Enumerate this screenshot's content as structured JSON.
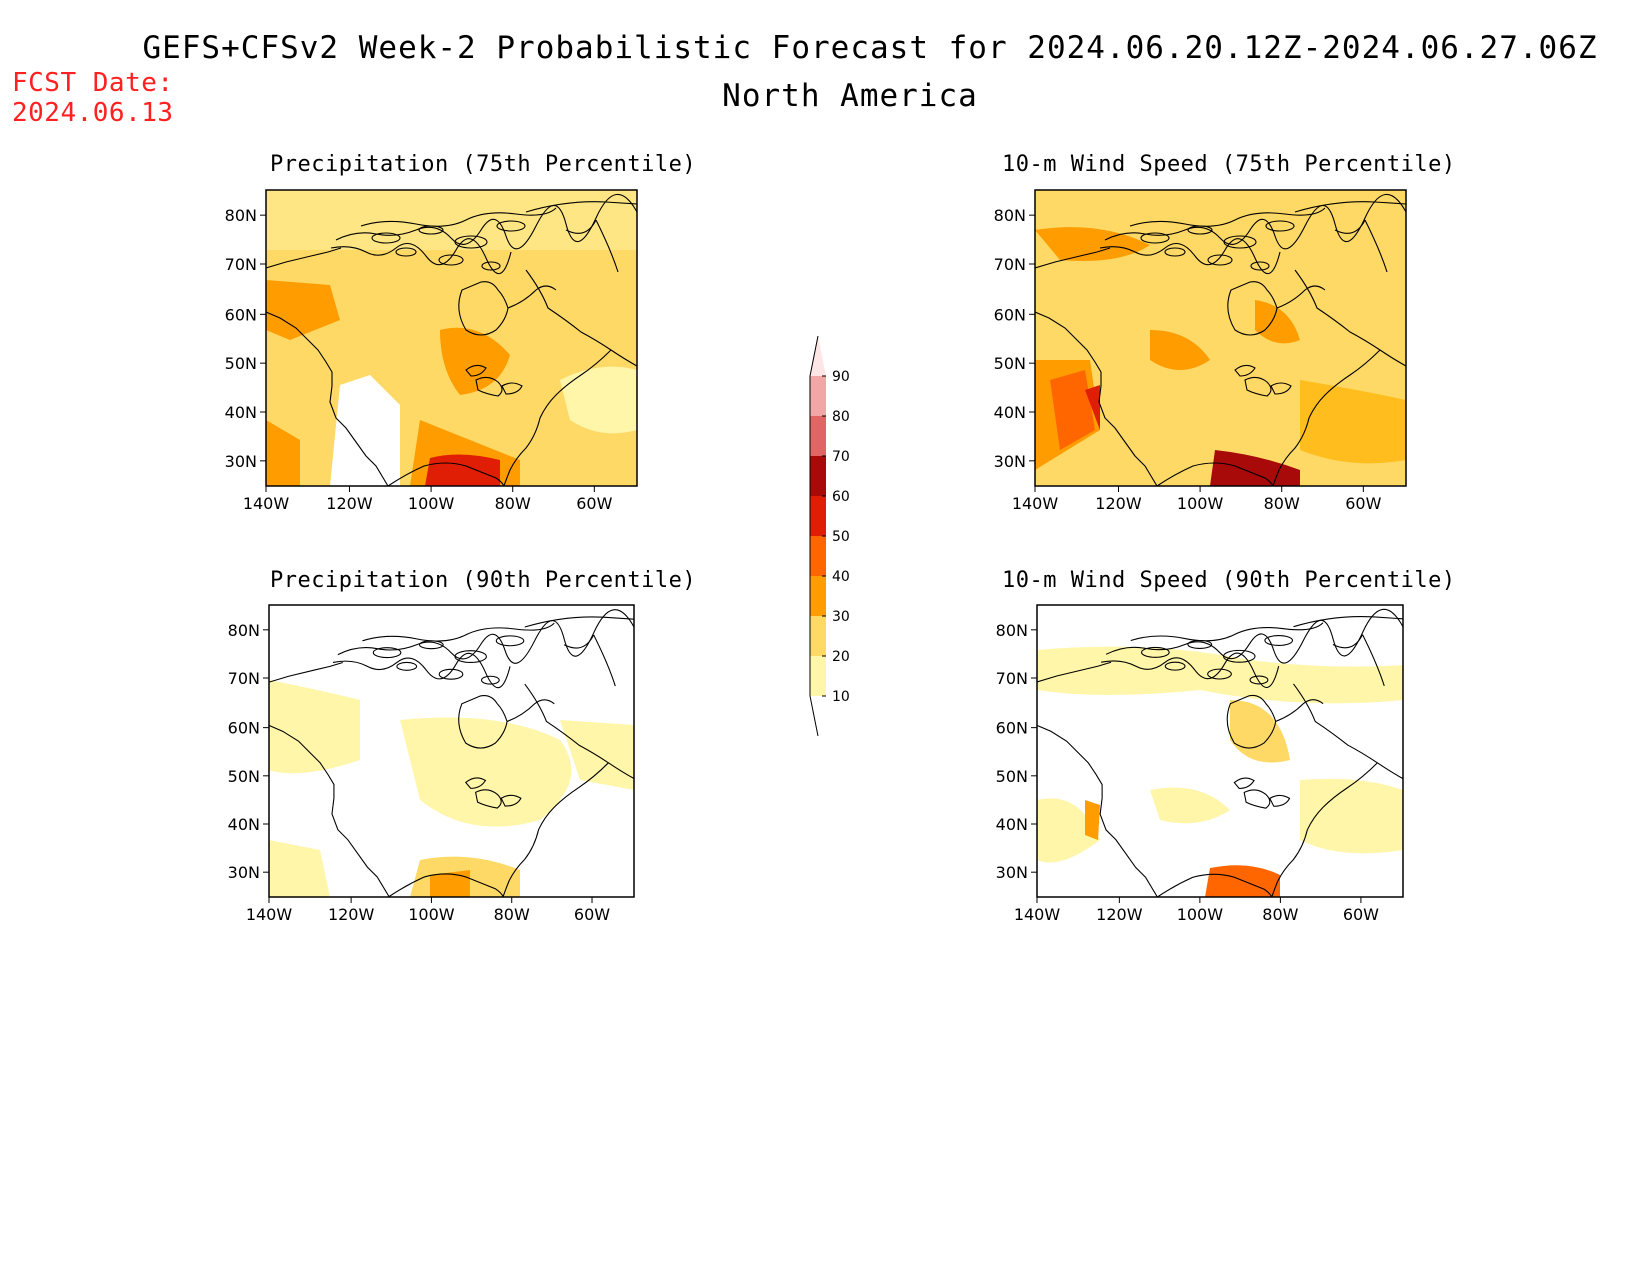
{
  "header": {
    "title": "GEFS+CFSv2 Week-2 Probabilistic Forecast for 2024.06.20.12Z-2024.06.27.06Z",
    "subtitle": "North America",
    "fcst_label": "FCST Date:",
    "fcst_date": "2024.06.13"
  },
  "panels": [
    {
      "title": "Precipitation (75th Percentile)"
    },
    {
      "title": "10-m Wind Speed (75th Percentile)"
    },
    {
      "title": "Precipitation (90th Percentile)"
    },
    {
      "title": "10-m Wind Speed (90th Percentile)"
    }
  ],
  "axes": {
    "lat_labels": [
      "80N",
      "70N",
      "60N",
      "50N",
      "40N",
      "30N"
    ],
    "lon_labels": [
      "140W",
      "120W",
      "100W",
      "80W",
      "60W"
    ]
  },
  "colorbar": {
    "labels": [
      "90",
      "80",
      "70",
      "60",
      "50",
      "40",
      "30",
      "20",
      "10"
    ],
    "colors": [
      "#ffe6e6",
      "#f2a7a7",
      "#e06666",
      "#a80a0a",
      "#e01e05",
      "#ff6600",
      "#ff9c00",
      "#ffd966",
      "#fff6a9"
    ]
  }
}
